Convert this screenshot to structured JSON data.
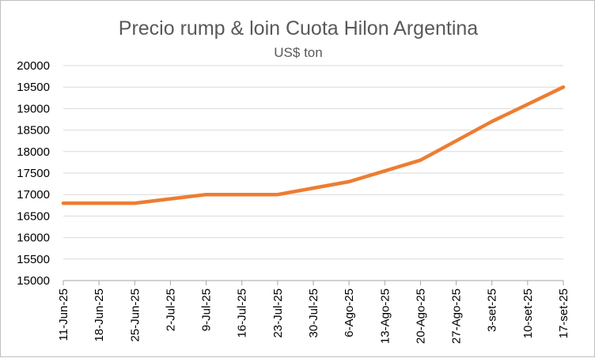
{
  "chart_data": {
    "type": "line",
    "title": "Precio rump & loin Cuota Hilon Argentina",
    "subtitle": "US$ ton",
    "xlabel": "",
    "ylabel": "",
    "ylim": [
      15000,
      20000
    ],
    "ytick_step": 500,
    "grid": true,
    "legend": "none",
    "categories": [
      "11-Jun-25",
      "18-Jun-25",
      "25-Jun-25",
      "2-Jul-25",
      "9-Jul-25",
      "16-Jul-25",
      "23-Jul-25",
      "30-Jul-25",
      "6-Ago-25",
      "13-Ago-25",
      "20-Ago-25",
      "27-Ago-25",
      "3-set-25",
      "10-set-25",
      "17-set-25"
    ],
    "series": [
      {
        "color": "#ed7d31",
        "values": [
          16800,
          16800,
          16800,
          16900,
          17000,
          17000,
          17000,
          17150,
          17300,
          17550,
          17800,
          18250,
          18700,
          19100,
          19500
        ]
      }
    ]
  }
}
